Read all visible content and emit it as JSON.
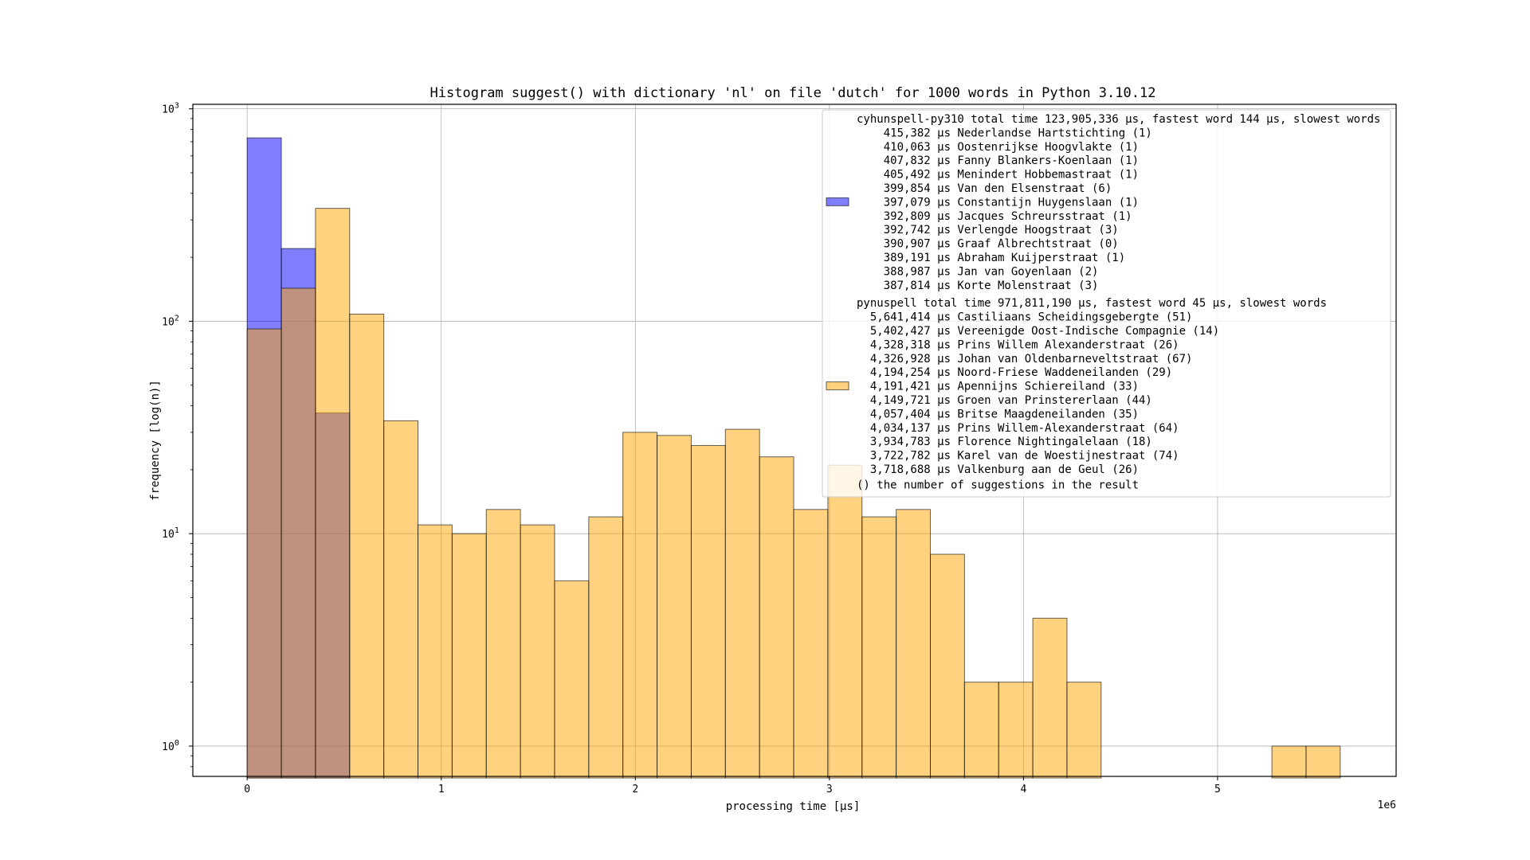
{
  "chart_data": {
    "type": "bar",
    "title": "Histogram suggest() with dictionary 'nl' on file 'dutch' for 1000 words in Python 3.10.12",
    "xlabel": "processing time [µs]",
    "ylabel": "frequency [log(n)]",
    "x_offset_label": "1e6",
    "yscale": "log",
    "grid": true,
    "legend_position": "top-right",
    "xlim": [
      -280000,
      5920000
    ],
    "ylim": [
      0.72,
      1050
    ],
    "x_ticks": [
      {
        "value": 0,
        "label": "0"
      },
      {
        "value": 1000000,
        "label": "1"
      },
      {
        "value": 2000000,
        "label": "2"
      },
      {
        "value": 3000000,
        "label": "3"
      },
      {
        "value": 4000000,
        "label": "4"
      },
      {
        "value": 5000000,
        "label": "5"
      }
    ],
    "y_ticks": [
      {
        "value": 1,
        "base": "10",
        "exp": "0"
      },
      {
        "value": 10,
        "base": "10",
        "exp": "1"
      },
      {
        "value": 100,
        "base": "10",
        "exp": "2"
      },
      {
        "value": 1000,
        "base": "10",
        "exp": "3"
      }
    ],
    "series": [
      {
        "name": "cyhunspell-py310",
        "color": "#0000ff",
        "opacity": 0.5,
        "bins": [
          {
            "start": 0,
            "end": 176000,
            "count": 730
          },
          {
            "start": 176000,
            "end": 352000,
            "count": 220
          },
          {
            "start": 352000,
            "end": 528000,
            "count": 37
          }
        ]
      },
      {
        "name": "pynuspell",
        "color": "#ffa500",
        "opacity": 0.5,
        "bins": [
          {
            "start": 0,
            "end": 176000,
            "count": 92
          },
          {
            "start": 176000,
            "end": 352000,
            "count": 143
          },
          {
            "start": 352000,
            "end": 528000,
            "count": 340
          },
          {
            "start": 528000,
            "end": 704000,
            "count": 108
          },
          {
            "start": 704000,
            "end": 880000,
            "count": 34
          },
          {
            "start": 880000,
            "end": 1056000,
            "count": 11
          },
          {
            "start": 1056000,
            "end": 1232000,
            "count": 10
          },
          {
            "start": 1232000,
            "end": 1408000,
            "count": 13
          },
          {
            "start": 1408000,
            "end": 1584000,
            "count": 11
          },
          {
            "start": 1584000,
            "end": 1760000,
            "count": 6
          },
          {
            "start": 1760000,
            "end": 1936000,
            "count": 12
          },
          {
            "start": 1936000,
            "end": 2112000,
            "count": 30
          },
          {
            "start": 2112000,
            "end": 2288000,
            "count": 29
          },
          {
            "start": 2288000,
            "end": 2464000,
            "count": 26
          },
          {
            "start": 2464000,
            "end": 2640000,
            "count": 31
          },
          {
            "start": 2640000,
            "end": 2816000,
            "count": 23
          },
          {
            "start": 2816000,
            "end": 2992000,
            "count": 13
          },
          {
            "start": 2992000,
            "end": 3168000,
            "count": 21
          },
          {
            "start": 3168000,
            "end": 3344000,
            "count": 12
          },
          {
            "start": 3344000,
            "end": 3520000,
            "count": 13
          },
          {
            "start": 3520000,
            "end": 3696000,
            "count": 8
          },
          {
            "start": 3696000,
            "end": 3872000,
            "count": 2
          },
          {
            "start": 3872000,
            "end": 4048000,
            "count": 2
          },
          {
            "start": 4048000,
            "end": 4224000,
            "count": 4
          },
          {
            "start": 4224000,
            "end": 4400000,
            "count": 2
          },
          {
            "start": 5280000,
            "end": 5456000,
            "count": 1
          },
          {
            "start": 5456000,
            "end": 5632000,
            "count": 1
          }
        ]
      }
    ],
    "legend": {
      "entries": [
        {
          "color": "#0000ff",
          "lines": [
            "cyhunspell-py310 total time 123,905,336 µs, fastest word 144 µs, slowest words",
            "    415,382 µs Nederlandse Hartstichting (1)",
            "    410,063 µs Oostenrijkse Hoogvlakte (1)",
            "    407,832 µs Fanny Blankers-Koenlaan (1)",
            "    405,492 µs Menindert Hobbemastraat (1)",
            "    399,854 µs Van den Elsenstraat (6)",
            "    397,079 µs Constantijn Huygenslaan (1)",
            "    392,809 µs Jacques Schreursstraat (1)",
            "    392,742 µs Verlengde Hoogstraat (3)",
            "    390,907 µs Graaf Albrechtstraat (0)",
            "    389,191 µs Abraham Kuijperstraat (1)",
            "    388,987 µs Jan van Goyenlaan (2)",
            "    387,814 µs Korte Molenstraat (3)"
          ]
        },
        {
          "color": "#ffa500",
          "lines": [
            "pynuspell total time 971,811,190 µs, fastest word 45 µs, slowest words",
            "  5,641,414 µs Castiliaans Scheidingsgebergte (51)",
            "  5,402,427 µs Vereenigde Oost-Indische Compagnie (14)",
            "  4,328,318 µs Prins Willem Alexanderstraat (26)",
            "  4,326,928 µs Johan van Oldenbarneveltstraat (67)",
            "  4,194,254 µs Noord-Friese Waddeneilanden (29)",
            "  4,191,421 µs Apennijns Schiereiland (33)",
            "  4,149,721 µs Groen van Prinstererlaan (44)",
            "  4,057,404 µs Britse Maagdeneilanden (35)",
            "  4,034,137 µs Prins Willem-Alexanderstraat (64)",
            "  3,934,783 µs Florence Nightingalelaan (18)",
            "  3,722,782 µs Karel van de Woestijnestraat (74)",
            "  3,718,688 µs Valkenburg aan de Geul (26)"
          ]
        }
      ],
      "footer": "() the number of suggestions in the result"
    }
  }
}
